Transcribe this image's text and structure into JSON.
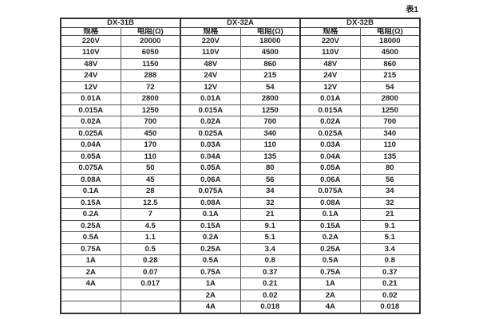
{
  "caption": "表1",
  "colors": {
    "background": "#ffffff",
    "text": "#212121",
    "border_inner": "#595959",
    "border_outer": "#333333"
  },
  "table": {
    "groups": [
      {
        "name": "DX-31B"
      },
      {
        "name": "DX-32A"
      },
      {
        "name": "DX-32B"
      }
    ],
    "subheaders": {
      "spec": "规格",
      "resistance": "电阻(Ω)"
    },
    "rows": [
      [
        "220V",
        "20000",
        "220V",
        "18000",
        "220V",
        "18000"
      ],
      [
        "110V",
        "6050",
        "110V",
        "4500",
        "110V",
        "4500"
      ],
      [
        "48V",
        "1150",
        "48V",
        "860",
        "48V",
        "860"
      ],
      [
        "24V",
        "288",
        "24V",
        "215",
        "24V",
        "215"
      ],
      [
        "12V",
        "72",
        "12V",
        "54",
        "12V",
        "54"
      ],
      [
        "0.01A",
        "2800",
        "0.01A",
        "2800",
        "0.01A",
        "2800"
      ],
      [
        "0.015A",
        "1250",
        "0.015A",
        "1250",
        "0.015A",
        "1250"
      ],
      [
        "0.02A",
        "700",
        "0.02A",
        "700",
        "0.02A",
        "700"
      ],
      [
        "0.025A",
        "450",
        "0.025A",
        "340",
        "0.025A",
        "340"
      ],
      [
        "0.04A",
        "170",
        "0.03A",
        "110",
        "0.03A",
        "110"
      ],
      [
        "0.05A",
        "110",
        "0.04A",
        "135",
        "0.04A",
        "135"
      ],
      [
        "0.075A",
        "50",
        "0.05A",
        "80",
        "0.05A",
        "80"
      ],
      [
        "0.08A",
        "45",
        "0.06A",
        "56",
        "0.06A",
        "56"
      ],
      [
        "0.1A",
        "28",
        "0.075A",
        "34",
        "0.075A",
        "34"
      ],
      [
        "0.15A",
        "12.5",
        "0.08A",
        "32",
        "0.08A",
        "32"
      ],
      [
        "0.2A",
        "7",
        "0.1A",
        "21",
        "0.1A",
        "21"
      ],
      [
        "0.25A",
        "4.5",
        "0.15A",
        "9.1",
        "0.15A",
        "9.1"
      ],
      [
        "0.5A",
        "1.1",
        "0.2A",
        "5.1",
        "0.2A",
        "5.1"
      ],
      [
        "0.75A",
        "0.5",
        "0.25A",
        "3.4",
        "0.25A",
        "3.4"
      ],
      [
        "1A",
        "0.28",
        "0.5A",
        "0.8",
        "0.5A",
        "0.8"
      ],
      [
        "2A",
        "0.07",
        "0.75A",
        "0.37",
        "0.75A",
        "0.37"
      ],
      [
        "4A",
        "0.017",
        "1A",
        "0.21",
        "1A",
        "0.21"
      ],
      [
        "",
        "",
        "2A",
        "0.02",
        "2A",
        "0.02"
      ],
      [
        "",
        "",
        "4A",
        "0.018",
        "4A",
        "0.018"
      ]
    ]
  }
}
